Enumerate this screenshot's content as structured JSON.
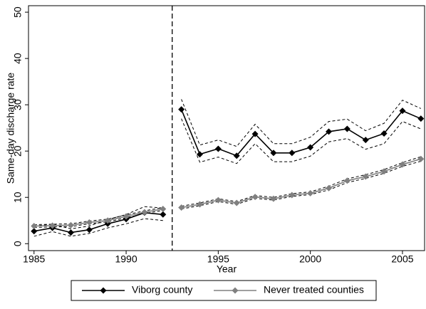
{
  "chart_data": {
    "type": "line",
    "y_label": "Same-day discharge rate",
    "x_label": "Year",
    "x": [
      1985,
      1986,
      1987,
      1988,
      1989,
      1990,
      1991,
      1992,
      1993,
      1994,
      1995,
      1996,
      1997,
      1998,
      1999,
      2000,
      2001,
      2002,
      2003,
      2004,
      2005,
      2006
    ],
    "series": [
      {
        "name": "Viborg county",
        "color": "#000000",
        "values": [
          2.7,
          3.4,
          2.4,
          3.0,
          4.3,
          5.3,
          6.7,
          6.3,
          29.0,
          19.3,
          20.5,
          19.0,
          23.7,
          19.6,
          19.6,
          20.8,
          24.2,
          24.8,
          22.4,
          23.8,
          28.7,
          27.0
        ],
        "upper": [
          3.8,
          4.2,
          3.2,
          3.8,
          5.2,
          6.3,
          8.0,
          7.7,
          31.2,
          21.3,
          22.4,
          21.0,
          25.8,
          21.6,
          21.6,
          23.0,
          26.4,
          26.9,
          24.4,
          26.0,
          31.0,
          29.2
        ],
        "lower": [
          1.6,
          2.6,
          1.6,
          2.2,
          3.4,
          4.3,
          5.4,
          5.0,
          27.0,
          17.6,
          18.7,
          17.3,
          21.6,
          17.7,
          17.7,
          18.9,
          22.0,
          22.7,
          20.4,
          21.6,
          26.4,
          24.8
        ]
      },
      {
        "name": "Never treated counties",
        "color": "#808080",
        "values": [
          3.8,
          3.9,
          4.0,
          4.6,
          5.0,
          5.9,
          6.8,
          7.5,
          7.8,
          8.5,
          9.4,
          8.8,
          10.1,
          9.7,
          10.5,
          10.9,
          12.0,
          13.6,
          14.5,
          15.6,
          17.1,
          18.3
        ],
        "upper": [
          4.1,
          4.2,
          4.3,
          4.9,
          5.3,
          6.2,
          7.1,
          7.8,
          8.1,
          8.8,
          9.7,
          9.1,
          10.4,
          10.0,
          10.8,
          11.2,
          12.4,
          14.0,
          14.9,
          16.0,
          17.5,
          18.8
        ],
        "lower": [
          3.5,
          3.6,
          3.7,
          4.3,
          4.7,
          5.6,
          6.5,
          7.2,
          7.5,
          8.2,
          9.1,
          8.5,
          9.8,
          9.4,
          10.2,
          10.6,
          11.6,
          13.2,
          14.1,
          15.2,
          16.7,
          17.8
        ]
      }
    ],
    "vline": 1992.5,
    "xlim": [
      1984.7,
      2006.2
    ],
    "xticks": [
      1985,
      1990,
      1995,
      2000,
      2005
    ],
    "ylim": [
      -1.5,
      51.4
    ],
    "yticks": [
      0,
      10,
      20,
      30,
      40,
      50
    ],
    "grid": false,
    "legend": "bottom"
  }
}
